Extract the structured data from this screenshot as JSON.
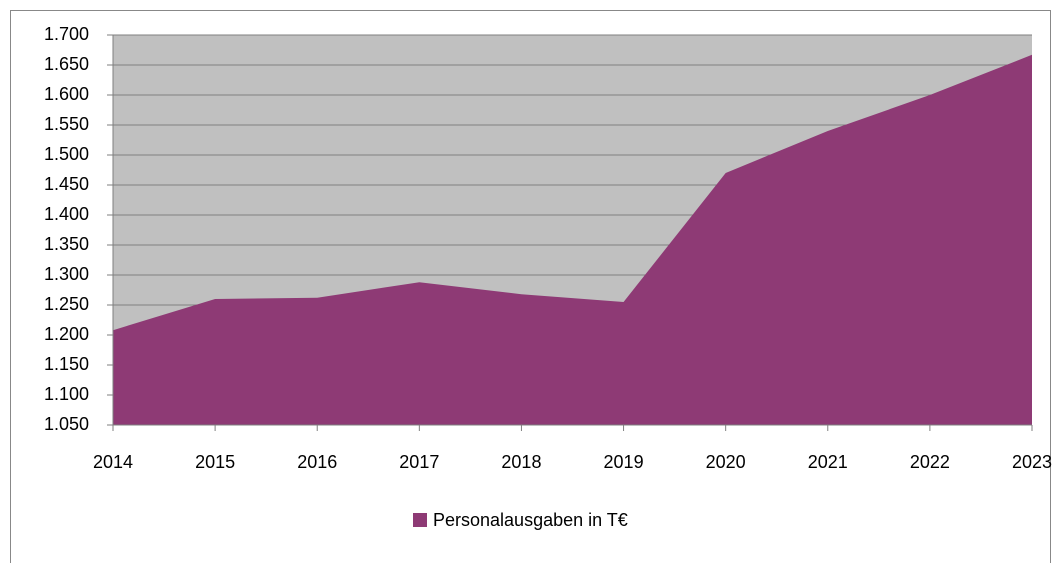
{
  "chart_data": {
    "type": "area",
    "categories": [
      "2014",
      "2015",
      "2016",
      "2017",
      "2018",
      "2019",
      "2020",
      "2021",
      "2022",
      "2023"
    ],
    "series": [
      {
        "name": "Personalausgaben in T€",
        "color": "#8e3a75",
        "values": [
          1208,
          1260,
          1262,
          1288,
          1268,
          1255,
          1470,
          1540,
          1600,
          1667
        ]
      }
    ],
    "ylim": [
      1050,
      1700
    ],
    "yticks": [
      {
        "value": 1050,
        "label": "1.050"
      },
      {
        "value": 1100,
        "label": "1.100"
      },
      {
        "value": 1150,
        "label": "1.150"
      },
      {
        "value": 1200,
        "label": "1.200"
      },
      {
        "value": 1250,
        "label": "1.250"
      },
      {
        "value": 1300,
        "label": "1.300"
      },
      {
        "value": 1350,
        "label": "1.350"
      },
      {
        "value": 1400,
        "label": "1.400"
      },
      {
        "value": 1450,
        "label": "1.450"
      },
      {
        "value": 1500,
        "label": "1.500"
      },
      {
        "value": 1550,
        "label": "1.550"
      },
      {
        "value": 1600,
        "label": "1.600"
      },
      {
        "value": 1650,
        "label": "1.650"
      },
      {
        "value": 1700,
        "label": "1.700"
      }
    ],
    "grid": true,
    "plot_background": "#c0c0c0",
    "legend": "bottom"
  }
}
